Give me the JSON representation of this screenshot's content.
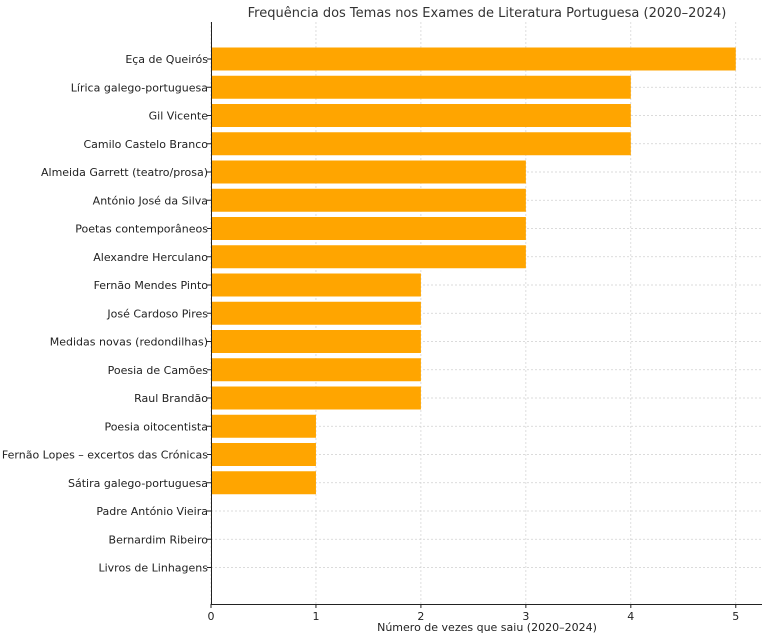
{
  "chart_data": {
    "type": "bar",
    "orientation": "horizontal",
    "title": "Frequência dos Temas nos Exames de Literatura Portuguesa (2020–2024)",
    "xlabel": "Número de vezes que saiu (2020–2024)",
    "ylabel": "",
    "xlim": [
      0,
      5.25
    ],
    "xticks": [
      0,
      1,
      2,
      3,
      4,
      5
    ],
    "grid": true,
    "bar_color": "#FFA500",
    "categories": [
      "Eça de Queirós",
      "Lírica galego-portuguesa",
      "Gil Vicente",
      "Camilo Castelo Branco",
      "Almeida Garrett (teatro/prosa)",
      "António José da Silva",
      "Poetas contemporâneos",
      "Alexandre Herculano",
      "Fernão Mendes Pinto",
      "José Cardoso Pires",
      "Medidas novas (redondilhas)",
      "Poesia de Camões",
      "Raul Brandão",
      "Poesia oitocentista",
      "Fernão Lopes – excertos das Crónicas",
      "Sátira galego-portuguesa",
      "Padre António Vieira",
      "Bernardim Ribeiro",
      "Livros de Linhagens"
    ],
    "values": [
      5,
      4,
      4,
      4,
      3,
      3,
      3,
      3,
      2,
      2,
      2,
      2,
      2,
      1,
      1,
      1,
      0,
      0,
      0
    ]
  }
}
